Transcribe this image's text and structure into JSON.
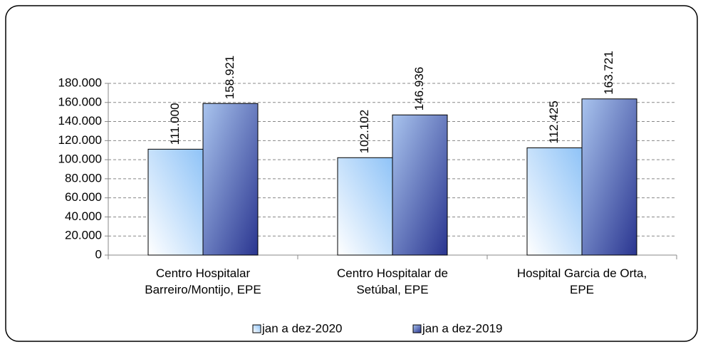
{
  "chart_data": {
    "type": "bar",
    "categories": [
      "Centro Hospitalar\nBarreiro/Montijo, EPE",
      "Centro Hospitalar de\nSetúbal, EPE",
      "Hospital Garcia de Orta,\nEPE"
    ],
    "series": [
      {
        "name": "jan a dez-2020",
        "color": "#8fc3f7",
        "values": [
          111000,
          102102,
          112425
        ],
        "value_labels": [
          "111.000",
          "102.102",
          "112.425"
        ]
      },
      {
        "name": "jan a dez-2019",
        "color": "#2a3590",
        "values": [
          158921,
          146936,
          163721
        ],
        "value_labels": [
          "158.921",
          "146.936",
          "163.721"
        ]
      }
    ],
    "ylim": [
      0,
      180000
    ],
    "yticks": [
      0,
      {
        "value": 20000,
        "label": "20.000"
      },
      {
        "value": 40000,
        "label": "40.000"
      },
      {
        "value": 60000,
        "label": "60.000"
      },
      {
        "value": 80000,
        "label": "80.000"
      },
      {
        "value": 100000,
        "label": "100.000"
      },
      {
        "value": 120000,
        "label": "120.000"
      },
      {
        "value": 140000,
        "label": "140.000"
      },
      {
        "value": 160000,
        "label": "160.000"
      },
      {
        "value": 180000,
        "label": "180.000"
      }
    ],
    "grid": true,
    "legend": "bottom"
  }
}
